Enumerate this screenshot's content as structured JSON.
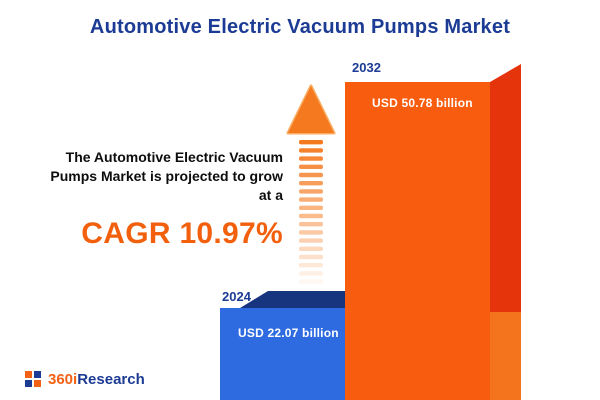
{
  "title": "Automotive Electric Vacuum Pumps Market",
  "annotation": {
    "lines": [
      "The Automotive Electric Vacuum",
      "Pumps Market is projected to grow",
      "at a"
    ],
    "cagr": "CAGR 10.97%"
  },
  "chart_data": {
    "type": "bar",
    "title": "Automotive Electric Vacuum Pumps Market",
    "categories": [
      "2024",
      "2032"
    ],
    "values": [
      22.07,
      50.78
    ],
    "value_labels": [
      "USD 22.07 billion",
      "USD 50.78 billion"
    ],
    "unit": "USD billion",
    "cagr_percent": 10.97,
    "bar_colors": [
      "#2F6BE0",
      "#F85C0E"
    ],
    "grid": false,
    "legend": "none"
  },
  "logo": {
    "part1": "360i",
    "part2": "Research"
  },
  "colors": {
    "title_navy": "#1C3B94",
    "accent_orange": "#F2600D",
    "bar_2024_front": "#2F6BE0",
    "bar_2024_dark": "#16357E",
    "bar_2032_front": "#F85C0E",
    "bar_2032_dark": "#E5330C",
    "arrow_orange": "#F5791F"
  }
}
